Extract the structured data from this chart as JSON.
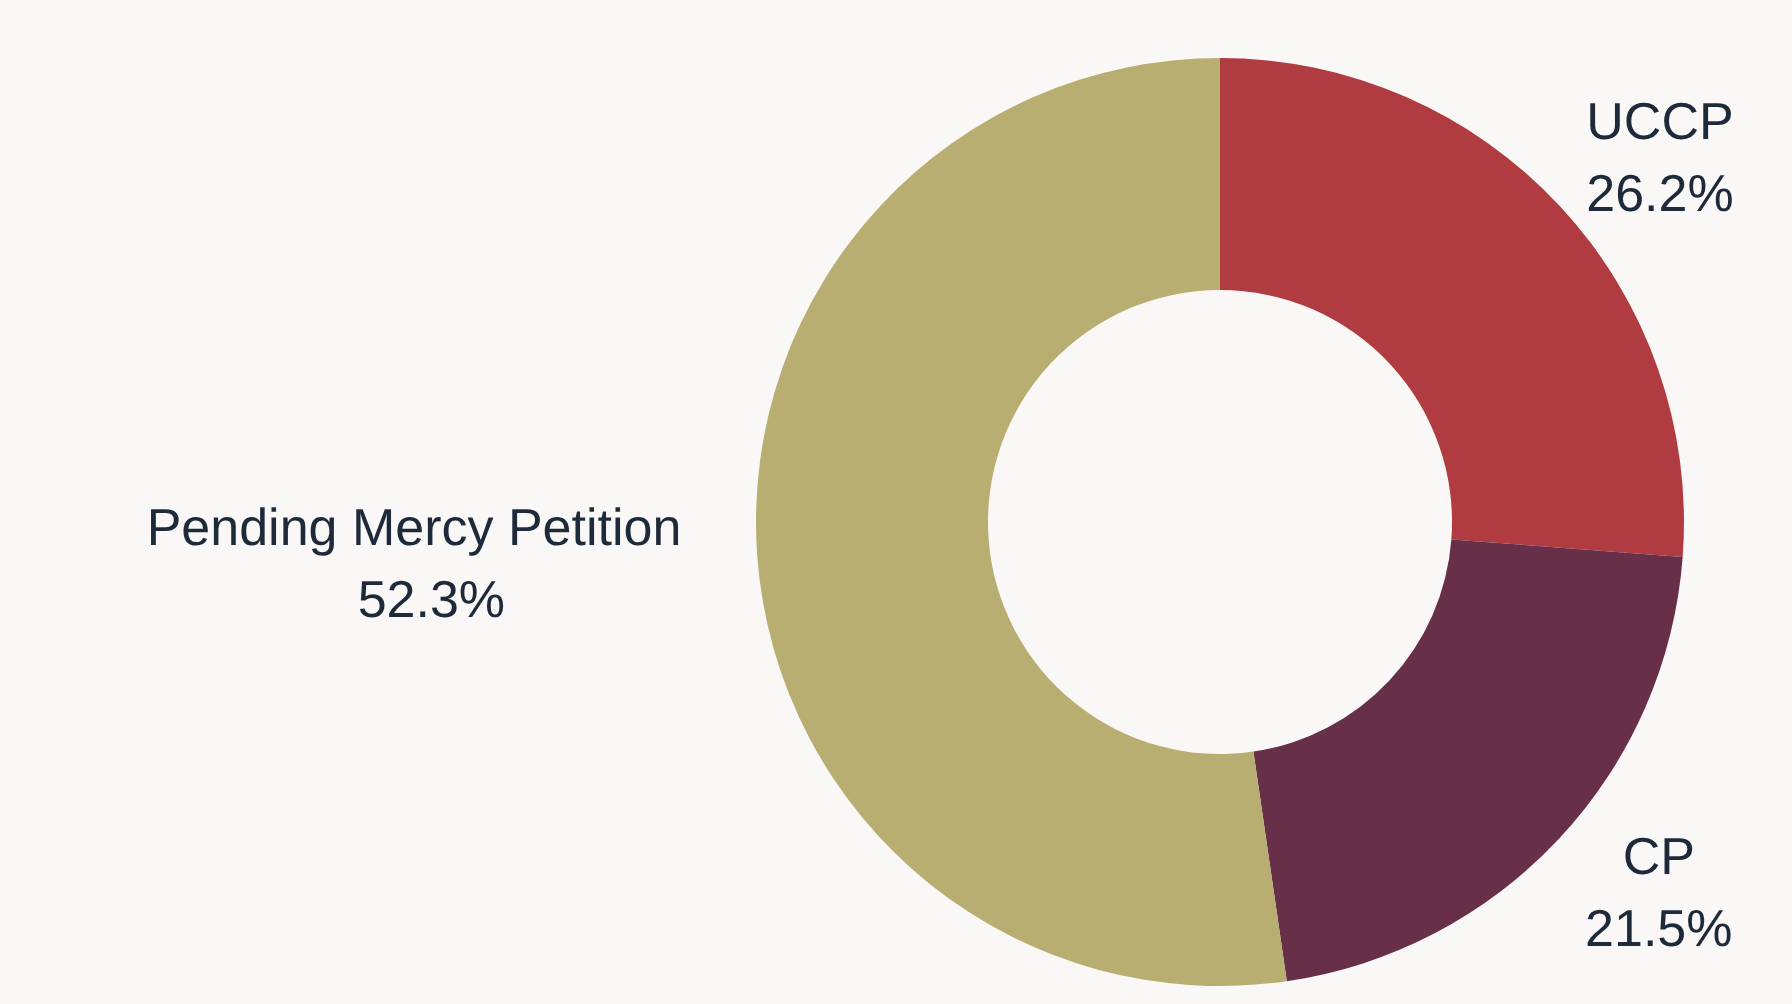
{
  "chart_data": {
    "type": "donut",
    "categories": [
      "UCCP",
      "CP",
      "Pending Mercy Petition"
    ],
    "values": [
      26.2,
      21.5,
      52.3
    ],
    "colors": [
      "#b03c42",
      "#672f48",
      "#b9ae72"
    ],
    "value_labels": [
      "26.2%",
      "21.5%",
      "52.3%"
    ],
    "legend": false
  }
}
